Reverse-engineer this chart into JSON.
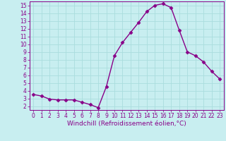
{
  "x": [
    0,
    1,
    2,
    3,
    4,
    5,
    6,
    7,
    8,
    9,
    10,
    11,
    12,
    13,
    14,
    15,
    16,
    17,
    18,
    19,
    20,
    21,
    22,
    23
  ],
  "y": [
    3.5,
    3.3,
    2.9,
    2.8,
    2.8,
    2.8,
    2.5,
    2.2,
    1.8,
    4.5,
    8.5,
    10.2,
    11.5,
    12.8,
    14.2,
    15.0,
    15.2,
    14.7,
    11.8,
    9.0,
    8.5,
    7.7,
    6.5,
    5.5
  ],
  "line_color": "#880088",
  "marker": "D",
  "marker_size": 2.5,
  "bg_color": "#c8eef0",
  "grid_color": "#aadddd",
  "xlabel": "Windchill (Refroidissement éolien,°C)",
  "xlabel_color": "#880088",
  "ylim": [
    1.5,
    15.5
  ],
  "xlim": [
    -0.5,
    23.5
  ],
  "yticks": [
    2,
    3,
    4,
    5,
    6,
    7,
    8,
    9,
    10,
    11,
    12,
    13,
    14,
    15
  ],
  "xticks": [
    0,
    1,
    2,
    3,
    4,
    5,
    6,
    7,
    8,
    9,
    10,
    11,
    12,
    13,
    14,
    15,
    16,
    17,
    18,
    19,
    20,
    21,
    22,
    23
  ],
  "tick_color": "#880088",
  "tick_label_fontsize": 5.5,
  "xlabel_fontsize": 6.5,
  "line_width": 1.0
}
